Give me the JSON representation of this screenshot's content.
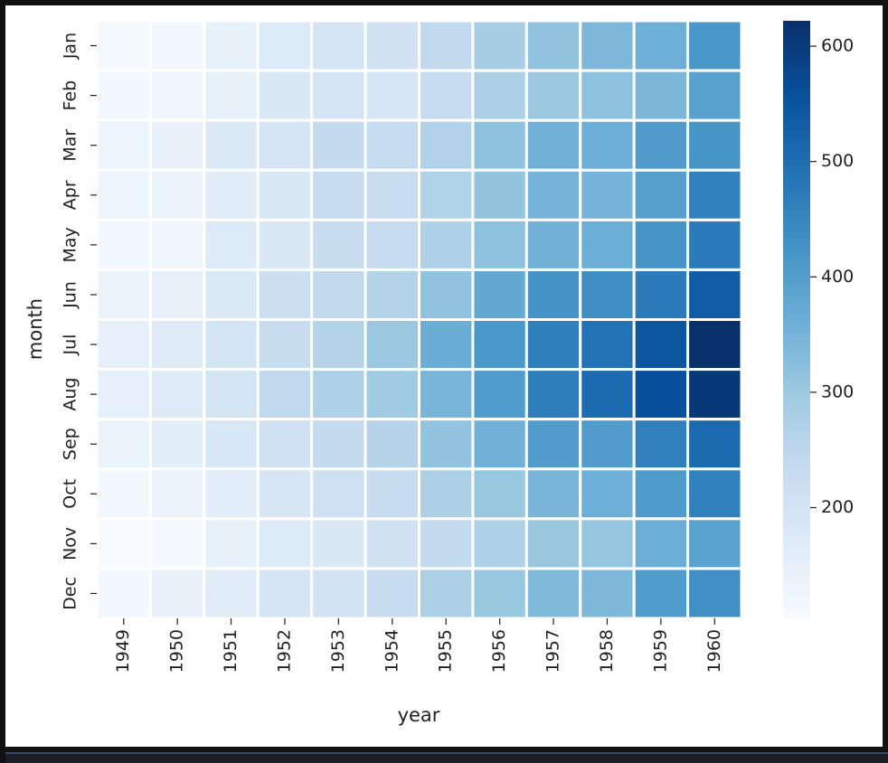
{
  "chart_data": {
    "type": "heatmap",
    "xlabel": "year",
    "ylabel": "month",
    "x": [
      "1949",
      "1950",
      "1951",
      "1952",
      "1953",
      "1954",
      "1955",
      "1956",
      "1957",
      "1958",
      "1959",
      "1960"
    ],
    "y": [
      "Jan",
      "Feb",
      "Mar",
      "Apr",
      "May",
      "Jun",
      "Jul",
      "Aug",
      "Sep",
      "Oct",
      "Nov",
      "Dec"
    ],
    "values": [
      [
        112,
        115,
        145,
        171,
        196,
        204,
        242,
        284,
        315,
        340,
        360,
        417
      ],
      [
        118,
        126,
        150,
        180,
        196,
        188,
        233,
        277,
        301,
        318,
        342,
        391
      ],
      [
        132,
        141,
        178,
        193,
        236,
        235,
        267,
        317,
        356,
        362,
        406,
        419
      ],
      [
        129,
        135,
        163,
        181,
        235,
        227,
        269,
        313,
        348,
        348,
        396,
        461
      ],
      [
        121,
        125,
        172,
        183,
        229,
        234,
        270,
        318,
        355,
        363,
        420,
        472
      ],
      [
        135,
        149,
        178,
        218,
        243,
        264,
        315,
        374,
        422,
        435,
        472,
        535
      ],
      [
        148,
        170,
        199,
        230,
        264,
        302,
        364,
        413,
        465,
        491,
        548,
        622
      ],
      [
        148,
        170,
        199,
        242,
        272,
        293,
        347,
        405,
        467,
        505,
        559,
        606
      ],
      [
        136,
        158,
        184,
        209,
        237,
        259,
        312,
        355,
        404,
        404,
        463,
        508
      ],
      [
        119,
        133,
        162,
        191,
        211,
        229,
        274,
        306,
        347,
        359,
        407,
        461
      ],
      [
        104,
        114,
        146,
        172,
        180,
        203,
        237,
        271,
        305,
        310,
        362,
        390
      ],
      [
        118,
        140,
        166,
        194,
        201,
        229,
        278,
        306,
        336,
        337,
        405,
        432
      ]
    ],
    "colorbar": {
      "ticks": [
        200,
        300,
        400,
        500,
        600
      ],
      "min": 104,
      "max": 622
    },
    "colormap": "Blues",
    "colors": [
      "#f7fbff",
      "#deebf7",
      "#c6dbef",
      "#9ecae1",
      "#6baed6",
      "#4292c6",
      "#2171b5",
      "#08519c",
      "#08306b"
    ]
  }
}
